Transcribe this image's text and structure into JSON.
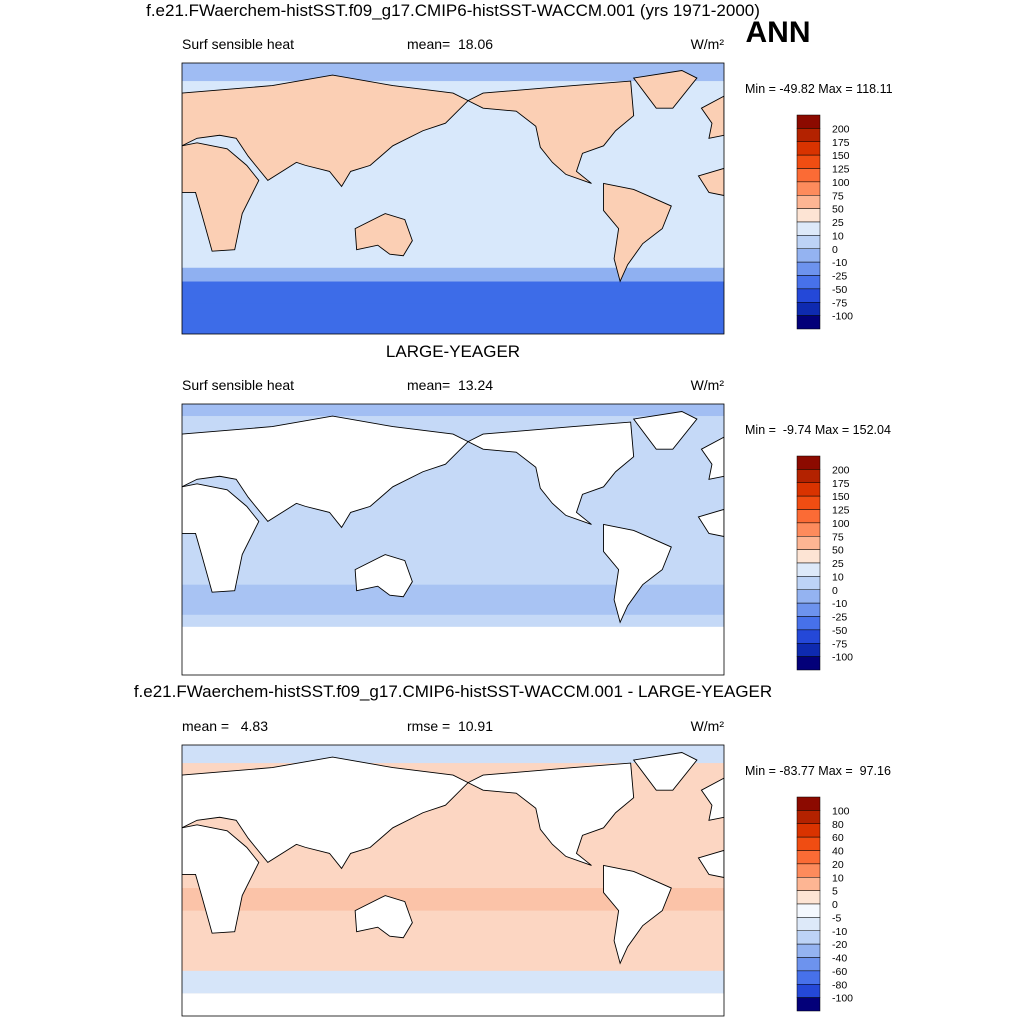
{
  "corner_label": "ANN",
  "panels": [
    {
      "title": "f.e21.FWaerchem-histSST.f09_g17.CMIP6-histSST-WACCM.001 (yrs 1971-2000)",
      "left_label": "Surf sensible heat",
      "center_label": "mean=  18.06",
      "units": "W/m²",
      "minmax": "Min = -49.82 Max = 118.11",
      "colorbar": {
        "levels": [
          200,
          175,
          150,
          125,
          100,
          75,
          50,
          25,
          10,
          0,
          -10,
          -25,
          -50,
          -75,
          -100
        ],
        "colors": [
          "#8c0a00",
          "#b32200",
          "#d93300",
          "#f04d12",
          "#fb6b35",
          "#fd8b5c",
          "#fdb593",
          "#fde4d4",
          "#dde9f9",
          "#bdd3f6",
          "#94b3f1",
          "#6d93ee",
          "#4771ea",
          "#2448d8",
          "#0e2ab0",
          "#030079"
        ]
      }
    },
    {
      "title": "LARGE-YEAGER",
      "left_label": "Surf sensible heat",
      "center_label": "mean=  13.24",
      "units": "W/m²",
      "minmax": "Min =  -9.74 Max = 152.04",
      "colorbar": {
        "levels": [
          200,
          175,
          150,
          125,
          100,
          75,
          50,
          25,
          10,
          0,
          -10,
          -25,
          -50,
          -75,
          -100
        ],
        "colors": [
          "#8c0a00",
          "#b32200",
          "#d93300",
          "#f04d12",
          "#fb6b35",
          "#fd8b5c",
          "#fdb593",
          "#fde4d4",
          "#dde9f9",
          "#bdd3f6",
          "#94b3f1",
          "#6d93ee",
          "#4771ea",
          "#2448d8",
          "#0e2ab0",
          "#030079"
        ]
      }
    },
    {
      "title": "f.e21.FWaerchem-histSST.f09_g17.CMIP6-histSST-WACCM.001 - LARGE-YEAGER",
      "left_label": "mean =   4.83",
      "center_label": "rmse =  10.91",
      "units": "W/m²",
      "minmax": "Min = -83.77 Max =  97.16",
      "colorbar": {
        "levels": [
          100,
          80,
          60,
          40,
          20,
          10,
          5,
          0,
          -5,
          -10,
          -20,
          -40,
          -60,
          -80,
          -100
        ],
        "colors": [
          "#8c0a00",
          "#b32200",
          "#d93300",
          "#f04d12",
          "#fb6b35",
          "#fd8b5c",
          "#fdb593",
          "#fde4d4",
          "#f4f8fe",
          "#dde9f9",
          "#bdd3f6",
          "#94b3f1",
          "#6d93ee",
          "#4771ea",
          "#2448d8",
          "#030079"
        ]
      }
    }
  ]
}
